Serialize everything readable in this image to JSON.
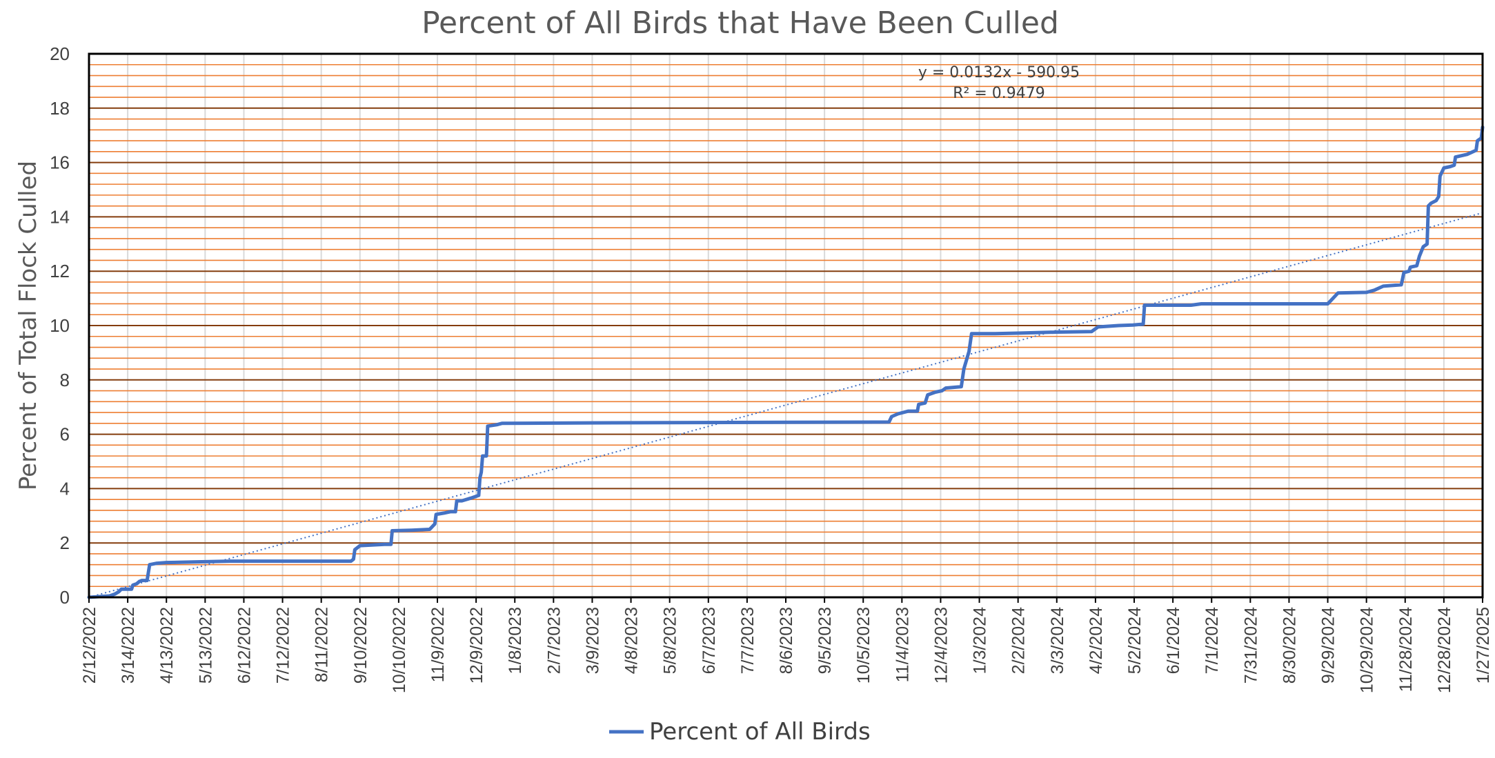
{
  "chart_data": {
    "type": "line",
    "title": "Percent of All Birds that Have Been Culled",
    "xlabel": "",
    "ylabel": "Percent of Total Flock Culled",
    "x_range": [
      "2/12/2022",
      "1/27/2025"
    ],
    "ylim": [
      0,
      20
    ],
    "y_ticks": [
      "0",
      "2",
      "4",
      "6",
      "8",
      "10",
      "12",
      "14",
      "16",
      "18",
      "20"
    ],
    "x_ticks": [
      "2/12/2022",
      "3/14/2022",
      "4/13/2022",
      "5/13/2022",
      "6/12/2022",
      "7/12/2022",
      "8/11/2022",
      "9/10/2022",
      "10/10/2022",
      "11/9/2022",
      "12/9/2022",
      "1/8/2023",
      "2/7/2023",
      "3/9/2023",
      "4/8/2023",
      "5/8/2023",
      "6/7/2023",
      "7/7/2023",
      "8/6/2023",
      "9/5/2023",
      "10/5/2023",
      "11/4/2023",
      "12/4/2023",
      "1/3/2024",
      "2/2/2024",
      "3/3/2024",
      "4/2/2024",
      "5/2/2024",
      "6/1/2024",
      "7/1/2024",
      "7/31/2024",
      "8/30/2024",
      "9/29/2024",
      "10/29/2024",
      "11/28/2024",
      "12/28/2024",
      "1/27/2025"
    ],
    "grid": true,
    "legend_position": "bottom",
    "colors": {
      "series": "#4472C4",
      "major_grid": "#843C0C",
      "minor_grid": "#ED7D31",
      "vertical_grid": "#D9D9D9",
      "trendline": "#4472C4"
    },
    "series": [
      {
        "name": "Percent of All Birds",
        "points": [
          [
            "2/12/2022",
            0.0
          ],
          [
            "2/28/2022",
            0.05
          ],
          [
            "3/4/2022",
            0.12
          ],
          [
            "3/7/2022",
            0.2
          ],
          [
            "3/9/2022",
            0.3
          ],
          [
            "3/17/2022",
            0.3
          ],
          [
            "3/18/2022",
            0.45
          ],
          [
            "3/21/2022",
            0.5
          ],
          [
            "3/23/2022",
            0.58
          ],
          [
            "3/25/2022",
            0.62
          ],
          [
            "3/29/2022",
            0.62
          ],
          [
            "3/31/2022",
            1.2
          ],
          [
            "4/5/2022",
            1.25
          ],
          [
            "4/13/2022",
            1.28
          ],
          [
            "5/4/2022",
            1.3
          ],
          [
            "6/1/2022",
            1.33
          ],
          [
            "9/3/2022",
            1.33
          ],
          [
            "9/5/2022",
            1.4
          ],
          [
            "9/6/2022",
            1.75
          ],
          [
            "9/10/2022",
            1.9
          ],
          [
            "9/29/2022",
            1.95
          ],
          [
            "10/4/2022",
            1.95
          ],
          [
            "10/5/2022",
            2.45
          ],
          [
            "10/20/2022",
            2.47
          ],
          [
            "11/3/2022",
            2.5
          ],
          [
            "11/7/2022",
            2.7
          ],
          [
            "11/8/2022",
            3.05
          ],
          [
            "11/14/2022",
            3.1
          ],
          [
            "11/19/2022",
            3.15
          ],
          [
            "11/23/2022",
            3.15
          ],
          [
            "11/24/2022",
            3.55
          ],
          [
            "11/28/2022",
            3.55
          ],
          [
            "12/5/2022",
            3.65
          ],
          [
            "12/11/2022",
            3.75
          ],
          [
            "12/12/2022",
            4.4
          ],
          [
            "12/13/2022",
            4.6
          ],
          [
            "12/14/2022",
            5.2
          ],
          [
            "12/17/2022",
            5.2
          ],
          [
            "12/18/2022",
            6.3
          ],
          [
            "12/25/2022",
            6.35
          ],
          [
            "12/29/2022",
            6.4
          ],
          [
            "3/9/2023",
            6.42
          ],
          [
            "10/25/2023",
            6.45
          ],
          [
            "10/27/2023",
            6.65
          ],
          [
            "11/1/2023",
            6.75
          ],
          [
            "11/9/2023",
            6.85
          ],
          [
            "11/16/2023",
            6.85
          ],
          [
            "11/17/2023",
            7.1
          ],
          [
            "11/22/2023",
            7.15
          ],
          [
            "11/24/2023",
            7.45
          ],
          [
            "11/30/2023",
            7.55
          ],
          [
            "12/5/2023",
            7.6
          ],
          [
            "12/8/2023",
            7.7
          ],
          [
            "12/20/2023",
            7.75
          ],
          [
            "12/22/2023",
            8.4
          ],
          [
            "12/26/2023",
            9.05
          ],
          [
            "12/28/2023",
            9.7
          ],
          [
            "1/15/2024",
            9.7
          ],
          [
            "2/2/2024",
            9.72
          ],
          [
            "3/3/2024",
            9.76
          ],
          [
            "3/30/2024",
            9.78
          ],
          [
            "4/4/2024",
            9.95
          ],
          [
            "4/20/2024",
            10.0
          ],
          [
            "5/1/2024",
            10.02
          ],
          [
            "5/9/2024",
            10.05
          ],
          [
            "5/10/2024",
            10.75
          ],
          [
            "6/15/2024",
            10.75
          ],
          [
            "6/23/2024",
            10.8
          ],
          [
            "9/29/2024",
            10.8
          ],
          [
            "10/7/2024",
            11.2
          ],
          [
            "10/29/2024",
            11.22
          ],
          [
            "11/4/2024",
            11.3
          ],
          [
            "11/11/2024",
            11.45
          ],
          [
            "11/25/2024",
            11.5
          ],
          [
            "11/27/2024",
            11.95
          ],
          [
            "12/1/2024",
            12.0
          ],
          [
            "12/2/2024",
            12.15
          ],
          [
            "12/7/2024",
            12.2
          ],
          [
            "12/9/2024",
            12.55
          ],
          [
            "12/12/2024",
            12.9
          ],
          [
            "12/15/2024",
            13.0
          ],
          [
            "12/16/2024",
            14.4
          ],
          [
            "12/18/2024",
            14.5
          ],
          [
            "12/22/2024",
            14.6
          ],
          [
            "12/24/2024",
            14.75
          ],
          [
            "12/25/2024",
            15.5
          ],
          [
            "12/28/2024",
            15.8
          ],
          [
            "1/2/2025",
            15.85
          ],
          [
            "1/5/2025",
            15.9
          ],
          [
            "1/6/2025",
            16.2
          ],
          [
            "1/15/2025",
            16.3
          ],
          [
            "1/22/2025",
            16.45
          ],
          [
            "1/23/2025",
            16.8
          ],
          [
            "1/26/2025",
            16.9
          ],
          [
            "1/27/2025",
            17.3
          ]
        ]
      }
    ],
    "trendline": {
      "type": "linear",
      "slope": 0.0132,
      "intercept": -590.95,
      "start_y": 0.0,
      "end_y": 14.15,
      "equation_label": "y = 0.0132x - 590.95",
      "r2_label": "R² = 0.9479"
    }
  }
}
